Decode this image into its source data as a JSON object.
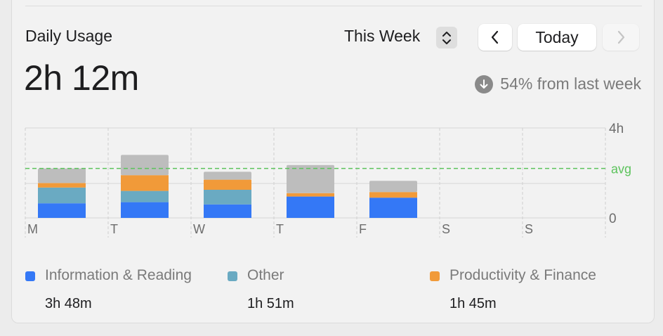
{
  "header": {
    "title": "Daily Usage",
    "total": "2h 12m",
    "period_label": "This Week",
    "today_label": "Today",
    "change_text": "54% from last week"
  },
  "icons": {
    "period": "chevron-up-down-icon",
    "prev": "chevron-left-icon",
    "next": "chevron-right-icon",
    "change": "arrow-down-circle-icon"
  },
  "colors": {
    "information": "#3478f6",
    "other": "#6aaac2",
    "productivity": "#f19a39",
    "remaining": "#bdbdbd",
    "avg_line": "#5cc35c"
  },
  "chart_data": {
    "type": "bar",
    "stacked": true,
    "categories": [
      "M",
      "T",
      "W",
      "T",
      "F",
      "S",
      "S"
    ],
    "y_ticks": [
      "0",
      "4h"
    ],
    "avg_label": "avg",
    "avg_hours": 2.2,
    "ylim": [
      0,
      4
    ],
    "series": [
      {
        "name": "Information & Reading",
        "color": "#3478f6",
        "values": [
          0.65,
          0.7,
          0.6,
          0.95,
          0.9,
          0,
          0
        ]
      },
      {
        "name": "Other",
        "color": "#6aaac2",
        "values": [
          0.7,
          0.5,
          0.65,
          0,
          0,
          0,
          0
        ]
      },
      {
        "name": "Productivity & Finance",
        "color": "#f19a39",
        "values": [
          0.2,
          0.7,
          0.45,
          0.15,
          0.25,
          0,
          0
        ]
      },
      {
        "color": "#bdbdbd",
        "values": [
          0.65,
          0.9,
          0.35,
          1.25,
          0.5,
          0,
          0
        ]
      }
    ]
  },
  "legend": [
    {
      "label": "Information & Reading",
      "value": "3h 48m",
      "color": "#3478f6"
    },
    {
      "label": "Other",
      "value": "1h 51m",
      "color": "#6aaac2"
    },
    {
      "label": "Productivity & Finance",
      "value": "1h 45m",
      "color": "#f19a39"
    }
  ]
}
